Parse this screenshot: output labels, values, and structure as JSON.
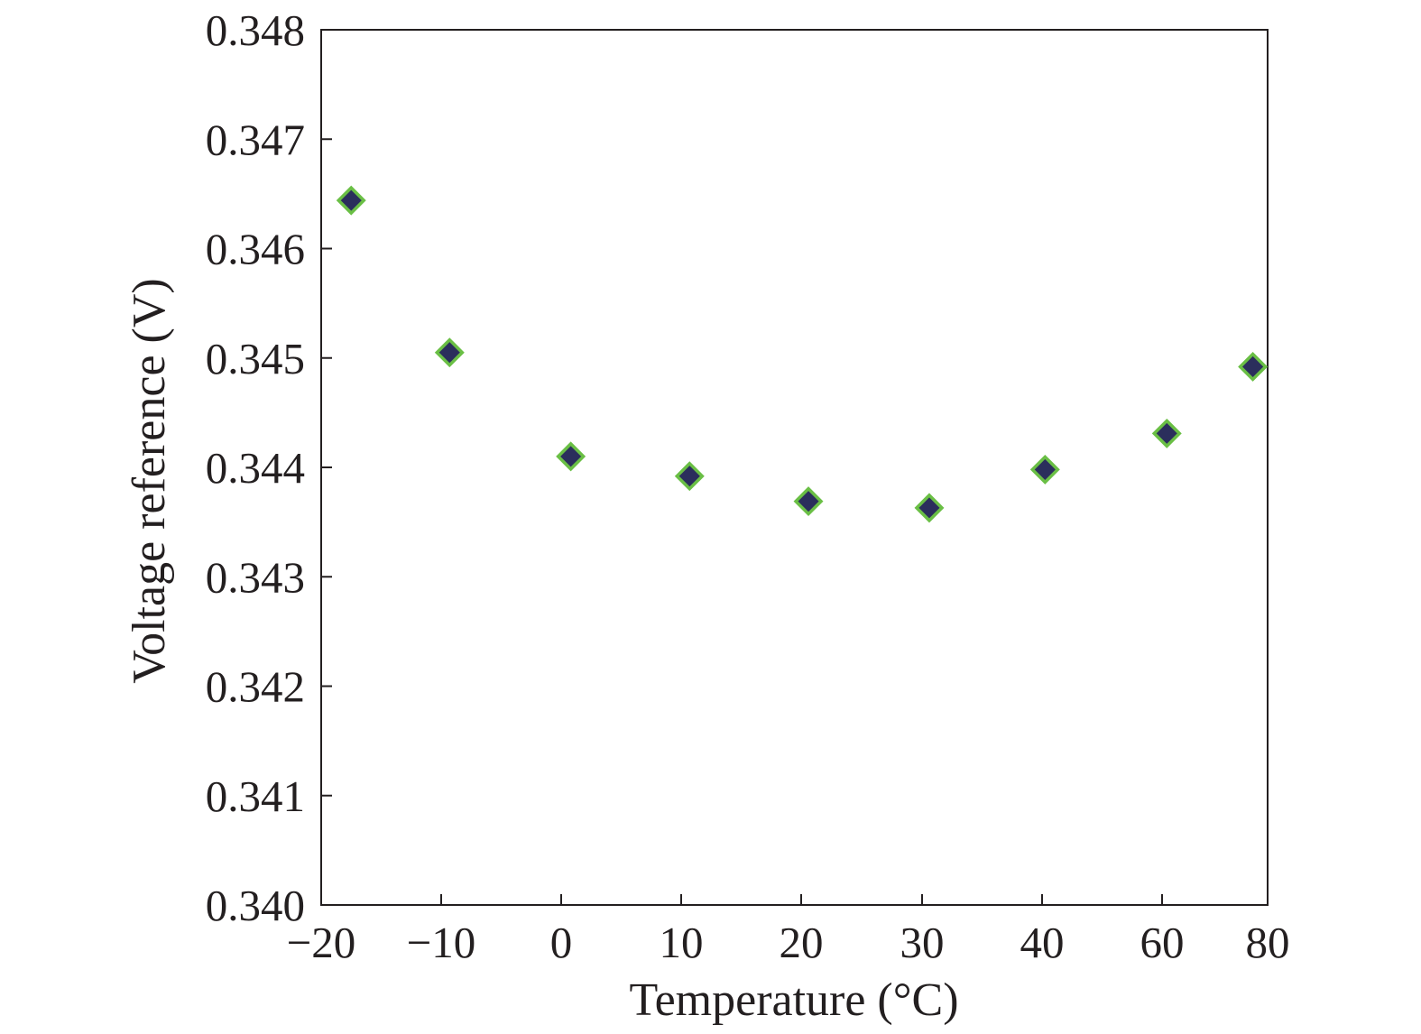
{
  "chart_data": {
    "type": "scatter",
    "title": "",
    "xlabel": "Temperature (°C)",
    "ylabel": "Voltage reference (V)",
    "x_tick_labels": [
      "−20",
      "−10",
      "0",
      "10",
      "20",
      "30",
      "40",
      "60",
      "80"
    ],
    "y_tick_labels": [
      "0.340",
      "0.341",
      "0.342",
      "0.343",
      "0.344",
      "0.345",
      "0.346",
      "0.347",
      "0.348"
    ],
    "ylim": [
      0.34,
      0.348
    ],
    "grid": false,
    "legend": "none",
    "marker": "diamond",
    "marker_fill": "#2b2e5c",
    "marker_edge": "#6abf45",
    "series": [
      {
        "x": [
          -17.5,
          -9.3,
          0.8,
          10.7,
          20.6,
          30.6,
          40.5,
          60.9,
          77.2
        ],
        "y": [
          0.34644,
          0.34505,
          0.3441,
          0.34392,
          0.34369,
          0.34363,
          0.34398,
          0.34431,
          0.34492
        ]
      }
    ]
  }
}
